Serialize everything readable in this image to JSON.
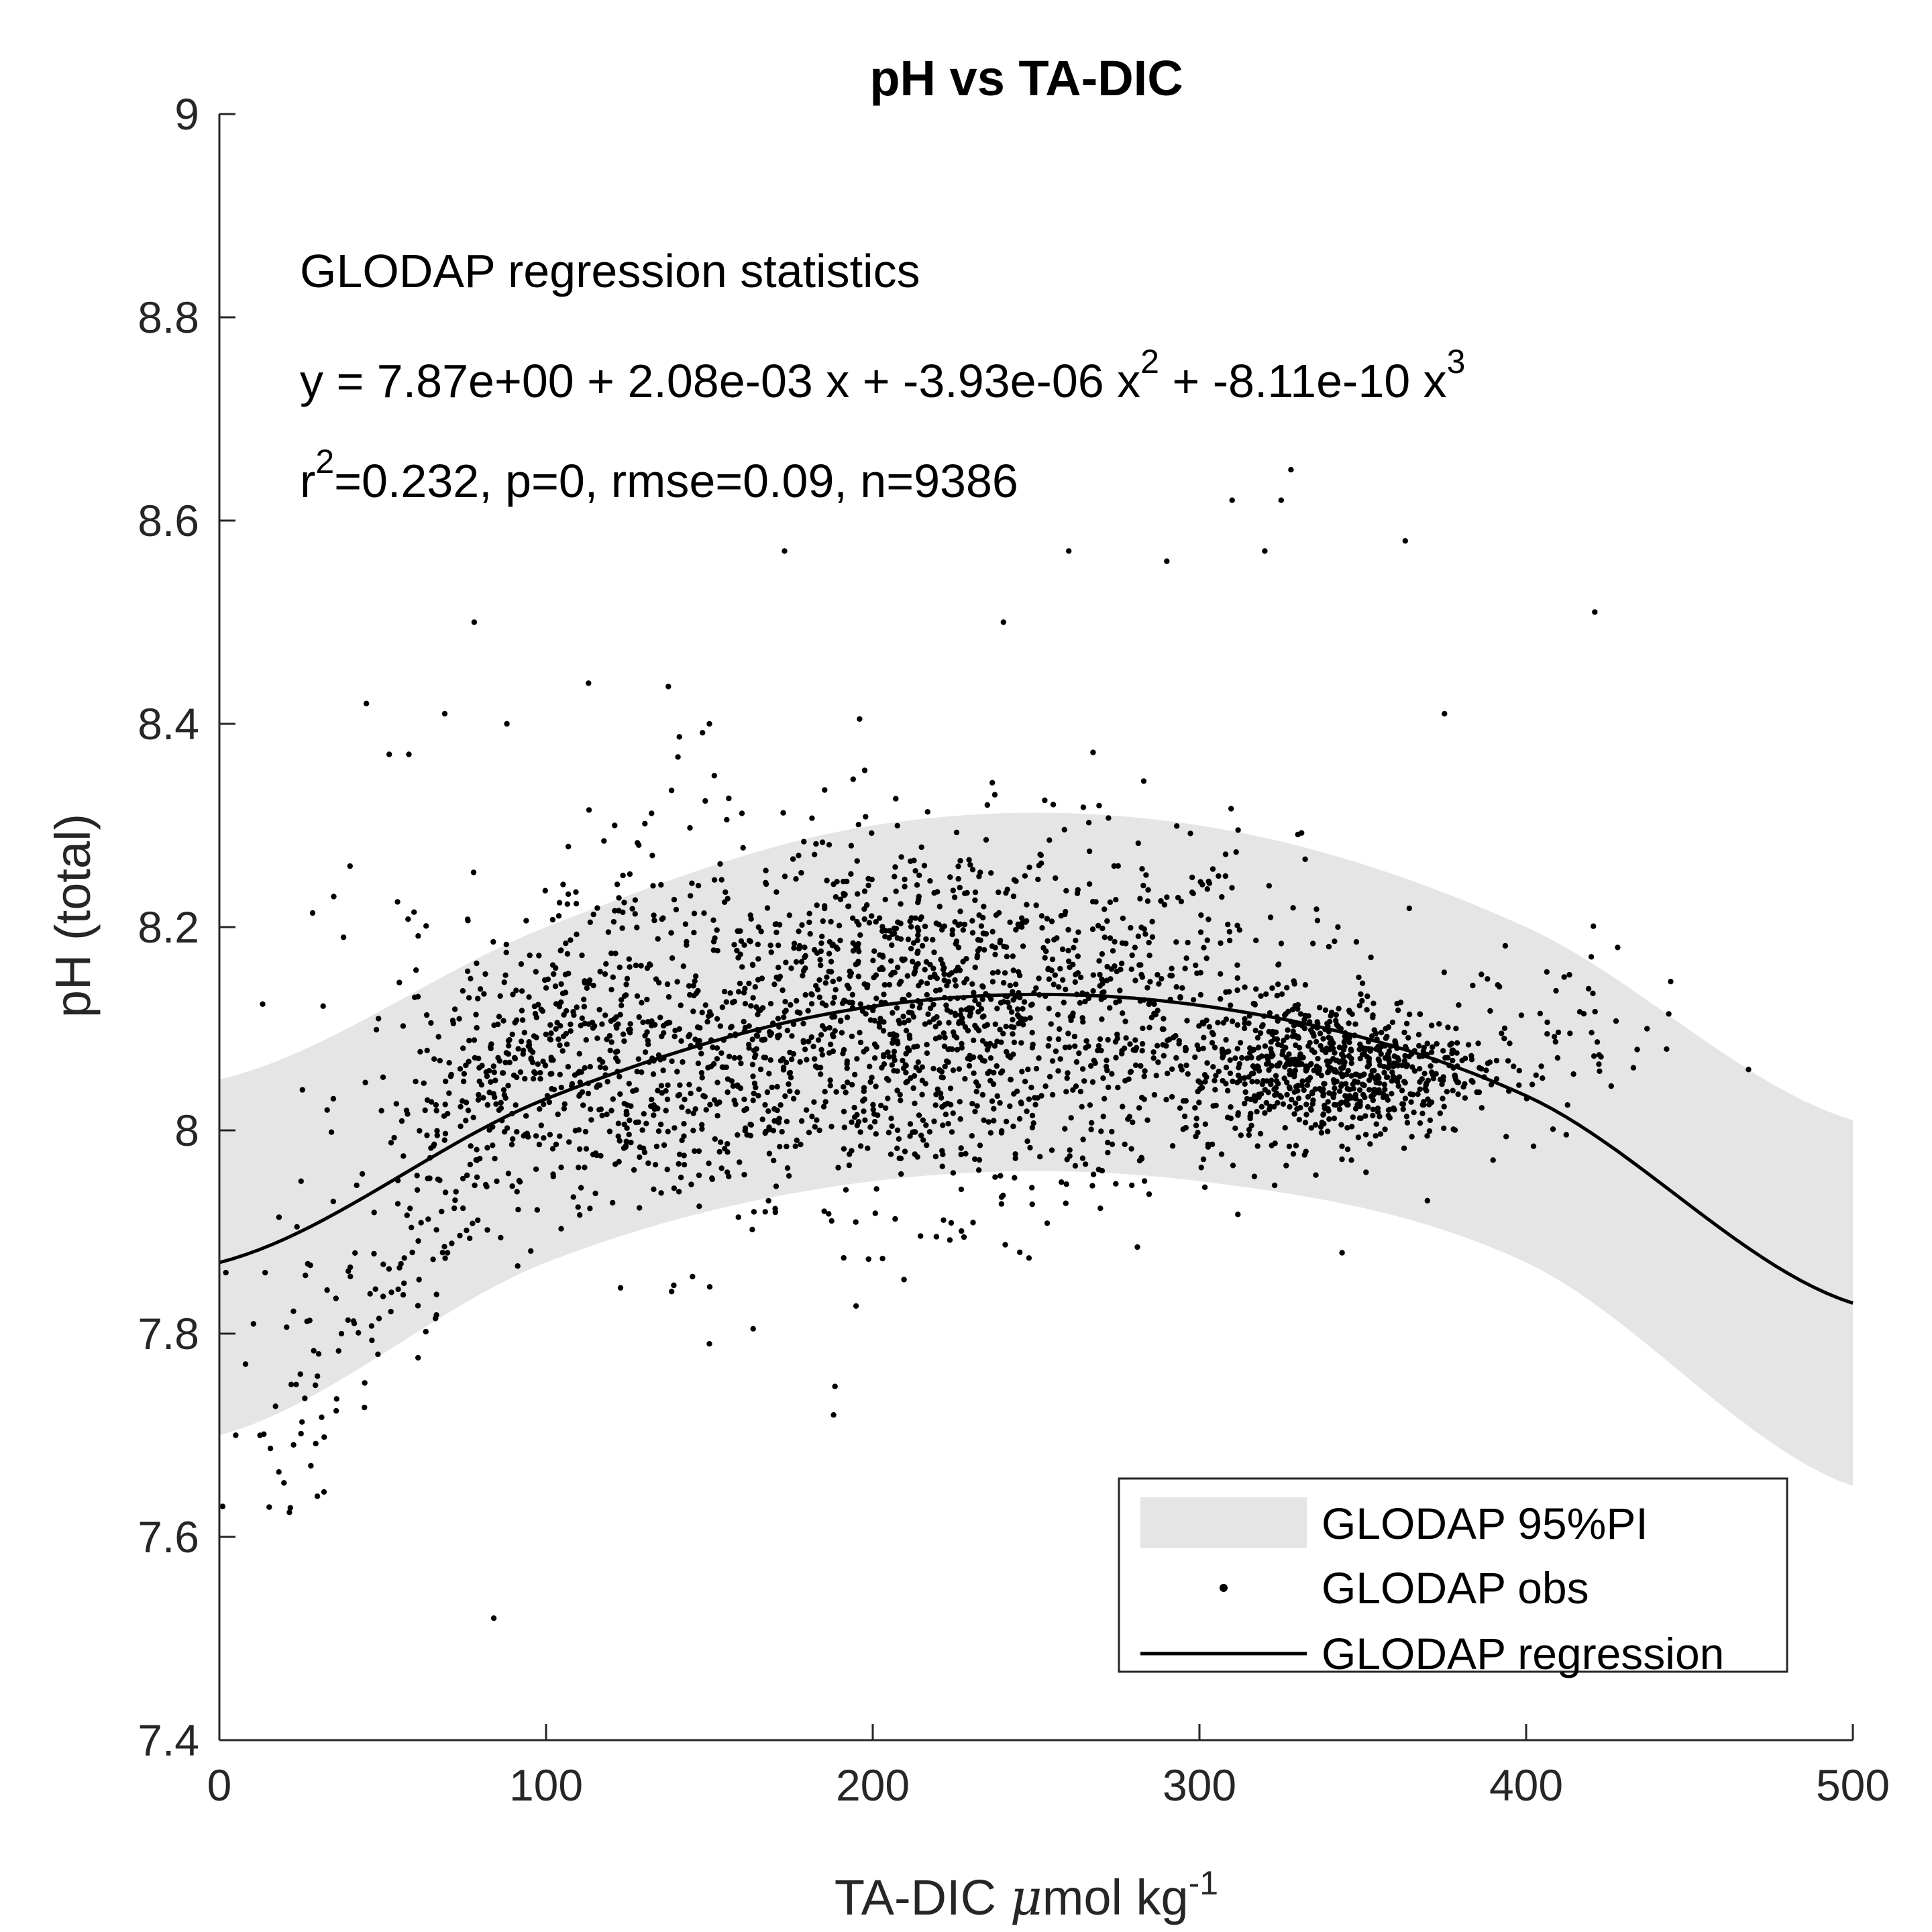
{
  "chart_data": {
    "type": "scatter",
    "title": "pH vs TA-DIC",
    "xlabel": {
      "main": "TA-DIC ",
      "mu": "μ",
      "rest": "mol kg",
      "sup": "-1"
    },
    "ylabel": "pH (total)",
    "xlim": [
      0,
      500
    ],
    "ylim": [
      7.4,
      9
    ],
    "x_ticks": [
      0,
      100,
      200,
      300,
      400,
      500
    ],
    "x_tick_labels": [
      "0",
      "100",
      "200",
      "300",
      "400",
      "500"
    ],
    "y_ticks": [
      7.4,
      7.6,
      7.8,
      8.0,
      8.2,
      8.4,
      8.6,
      8.8,
      9.0
    ],
    "y_tick_labels": [
      "7.4",
      "7.6",
      "7.8",
      "8",
      "8.2",
      "8.4",
      "8.6",
      "8.8",
      "9"
    ],
    "grid": false,
    "annotations": {
      "heading": "GLODAP regression statistics",
      "equation": {
        "p1": "y = 7.87e+00 + 2.08e-03 x + -3.93e-06 x",
        "sup1": "2",
        "p2": " + -8.11e-10 x",
        "sup2": "3"
      },
      "stats": {
        "p1": "r",
        "sup": "2",
        "p2": "=0.232, p=0, rmse=0.09, n=9386"
      }
    },
    "regression": {
      "coefficients": [
        7.87,
        0.00208,
        -3.93e-06,
        -8.11e-10
      ],
      "x_range": [
        0,
        500
      ],
      "y_at_x0": 7.87,
      "y_at_x500": 7.83
    },
    "prediction_interval_95": {
      "x": [
        0,
        100,
        200,
        300,
        400,
        500
      ],
      "upper": [
        8.05,
        8.2,
        8.3,
        8.3,
        8.2,
        8.01
      ],
      "lower": [
        7.7,
        7.87,
        7.95,
        7.95,
        7.87,
        7.65
      ]
    },
    "series": [
      {
        "name": "GLODAP 95%PI",
        "kind": "band",
        "color": "#e5e5e5"
      },
      {
        "name": "GLODAP obs",
        "kind": "points",
        "color": "#000000",
        "n": 9386
      },
      {
        "name": "GLODAP regression",
        "kind": "line",
        "color": "#000000"
      }
    ],
    "observations_sample": [
      [
        1,
        7.63
      ],
      [
        2,
        7.86
      ],
      [
        5,
        7.7
      ],
      [
        8,
        7.77
      ],
      [
        14,
        7.86
      ],
      [
        22,
        7.75
      ],
      [
        25,
        7.95
      ],
      [
        28,
        7.67
      ],
      [
        30,
        7.64
      ],
      [
        33,
        8.02
      ],
      [
        35,
        8.23
      ],
      [
        38,
        8.19
      ],
      [
        40,
        8.26
      ],
      [
        45,
        8.42
      ],
      [
        52,
        8.37
      ],
      [
        58,
        8.37
      ],
      [
        69,
        8.41
      ],
      [
        78,
        8.5
      ],
      [
        84,
        7.52
      ],
      [
        88,
        8.4
      ],
      [
        113,
        8.44
      ],
      [
        121,
        8.3
      ],
      [
        150,
        8.4
      ],
      [
        150,
        7.79
      ],
      [
        173,
        8.57
      ],
      [
        188,
        7.72
      ],
      [
        240,
        8.5
      ],
      [
        245,
        7.88
      ],
      [
        260,
        8.57
      ],
      [
        290,
        8.56
      ],
      [
        310,
        8.62
      ],
      [
        320,
        8.57
      ],
      [
        325,
        8.62
      ],
      [
        328,
        8.65
      ],
      [
        363,
        8.58
      ],
      [
        375,
        8.41
      ],
      [
        421,
        8.51
      ],
      [
        428,
        8.18
      ],
      [
        443,
        8.08
      ],
      [
        437,
        8.1
      ]
    ],
    "legend": {
      "location": "bottom-right",
      "entries": [
        "GLODAP 95%PI",
        "GLODAP obs",
        "GLODAP regression"
      ]
    }
  }
}
